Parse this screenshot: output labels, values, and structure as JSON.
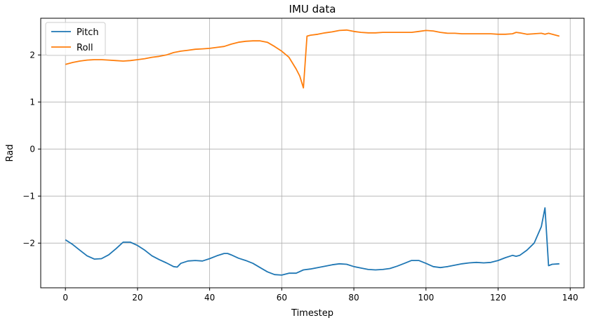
{
  "chart_data": {
    "type": "line",
    "title": "IMU data",
    "xlabel": "Timestep",
    "ylabel": "Rad",
    "xlim": [
      -6.85,
      143.85
    ],
    "ylim": [
      -2.95,
      2.78
    ],
    "xticks": [
      0,
      20,
      40,
      60,
      80,
      100,
      120,
      140
    ],
    "xtick_labels": [
      "0",
      "20",
      "40",
      "60",
      "80",
      "100",
      "120",
      "140"
    ],
    "yticks": [
      -2,
      -1,
      0,
      1,
      2
    ],
    "ytick_labels": [
      "−2",
      "−1",
      "0",
      "1",
      "2"
    ],
    "grid": true,
    "legend": "top-left",
    "series": [
      {
        "name": "Pitch",
        "color": "#1f77b4",
        "points": [
          [
            0,
            -1.93
          ],
          [
            2,
            -2.03
          ],
          [
            4,
            -2.15
          ],
          [
            6,
            -2.27
          ],
          [
            8,
            -2.34
          ],
          [
            10,
            -2.33
          ],
          [
            12,
            -2.25
          ],
          [
            14,
            -2.12
          ],
          [
            16,
            -1.98
          ],
          [
            18,
            -1.98
          ],
          [
            20,
            -2.05
          ],
          [
            22,
            -2.15
          ],
          [
            24,
            -2.27
          ],
          [
            26,
            -2.35
          ],
          [
            28,
            -2.42
          ],
          [
            30,
            -2.5
          ],
          [
            31,
            -2.51
          ],
          [
            32,
            -2.43
          ],
          [
            34,
            -2.38
          ],
          [
            36,
            -2.37
          ],
          [
            38,
            -2.38
          ],
          [
            40,
            -2.33
          ],
          [
            42,
            -2.27
          ],
          [
            44,
            -2.22
          ],
          [
            45,
            -2.22
          ],
          [
            46,
            -2.25
          ],
          [
            48,
            -2.32
          ],
          [
            50,
            -2.37
          ],
          [
            52,
            -2.43
          ],
          [
            54,
            -2.52
          ],
          [
            56,
            -2.61
          ],
          [
            58,
            -2.67
          ],
          [
            60,
            -2.68
          ],
          [
            62,
            -2.64
          ],
          [
            64,
            -2.64
          ],
          [
            66,
            -2.57
          ],
          [
            68,
            -2.55
          ],
          [
            70,
            -2.52
          ],
          [
            72,
            -2.49
          ],
          [
            74,
            -2.46
          ],
          [
            76,
            -2.44
          ],
          [
            78,
            -2.45
          ],
          [
            80,
            -2.5
          ],
          [
            82,
            -2.53
          ],
          [
            84,
            -2.56
          ],
          [
            86,
            -2.57
          ],
          [
            88,
            -2.56
          ],
          [
            90,
            -2.54
          ],
          [
            92,
            -2.49
          ],
          [
            94,
            -2.43
          ],
          [
            96,
            -2.37
          ],
          [
            98,
            -2.37
          ],
          [
            100,
            -2.43
          ],
          [
            102,
            -2.5
          ],
          [
            104,
            -2.52
          ],
          [
            106,
            -2.5
          ],
          [
            108,
            -2.47
          ],
          [
            110,
            -2.44
          ],
          [
            112,
            -2.42
          ],
          [
            114,
            -2.41
          ],
          [
            116,
            -2.42
          ],
          [
            118,
            -2.41
          ],
          [
            120,
            -2.37
          ],
          [
            122,
            -2.31
          ],
          [
            124,
            -2.26
          ],
          [
            125,
            -2.28
          ],
          [
            126,
            -2.26
          ],
          [
            128,
            -2.15
          ],
          [
            130,
            -2.0
          ],
          [
            132,
            -1.65
          ],
          [
            133,
            -1.25
          ],
          [
            134,
            -2.48
          ],
          [
            135,
            -2.45
          ],
          [
            137,
            -2.44
          ]
        ]
      },
      {
        "name": "Roll",
        "color": "#ff7f0e",
        "points": [
          [
            0,
            1.8
          ],
          [
            2,
            1.84
          ],
          [
            4,
            1.87
          ],
          [
            6,
            1.89
          ],
          [
            8,
            1.9
          ],
          [
            10,
            1.9
          ],
          [
            12,
            1.89
          ],
          [
            14,
            1.88
          ],
          [
            16,
            1.87
          ],
          [
            18,
            1.88
          ],
          [
            20,
            1.9
          ],
          [
            22,
            1.92
          ],
          [
            24,
            1.95
          ],
          [
            26,
            1.97
          ],
          [
            28,
            2.0
          ],
          [
            30,
            2.05
          ],
          [
            32,
            2.08
          ],
          [
            34,
            2.1
          ],
          [
            36,
            2.12
          ],
          [
            38,
            2.13
          ],
          [
            40,
            2.14
          ],
          [
            42,
            2.16
          ],
          [
            44,
            2.18
          ],
          [
            46,
            2.23
          ],
          [
            48,
            2.27
          ],
          [
            50,
            2.29
          ],
          [
            52,
            2.3
          ],
          [
            54,
            2.3
          ],
          [
            56,
            2.27
          ],
          [
            58,
            2.18
          ],
          [
            60,
            2.08
          ],
          [
            62,
            1.95
          ],
          [
            64,
            1.7
          ],
          [
            65,
            1.55
          ],
          [
            66,
            1.3
          ],
          [
            67,
            2.4
          ],
          [
            68,
            2.42
          ],
          [
            70,
            2.44
          ],
          [
            72,
            2.47
          ],
          [
            74,
            2.49
          ],
          [
            76,
            2.52
          ],
          [
            78,
            2.53
          ],
          [
            80,
            2.5
          ],
          [
            82,
            2.48
          ],
          [
            84,
            2.47
          ],
          [
            86,
            2.47
          ],
          [
            88,
            2.48
          ],
          [
            90,
            2.48
          ],
          [
            92,
            2.48
          ],
          [
            94,
            2.48
          ],
          [
            96,
            2.48
          ],
          [
            98,
            2.5
          ],
          [
            100,
            2.52
          ],
          [
            102,
            2.51
          ],
          [
            104,
            2.48
          ],
          [
            106,
            2.46
          ],
          [
            108,
            2.46
          ],
          [
            110,
            2.45
          ],
          [
            112,
            2.45
          ],
          [
            114,
            2.45
          ],
          [
            116,
            2.45
          ],
          [
            118,
            2.45
          ],
          [
            120,
            2.44
          ],
          [
            122,
            2.44
          ],
          [
            124,
            2.45
          ],
          [
            125,
            2.48
          ],
          [
            126,
            2.47
          ],
          [
            128,
            2.44
          ],
          [
            130,
            2.45
          ],
          [
            132,
            2.46
          ],
          [
            133,
            2.44
          ],
          [
            134,
            2.46
          ],
          [
            135,
            2.44
          ],
          [
            137,
            2.4
          ]
        ]
      }
    ]
  }
}
